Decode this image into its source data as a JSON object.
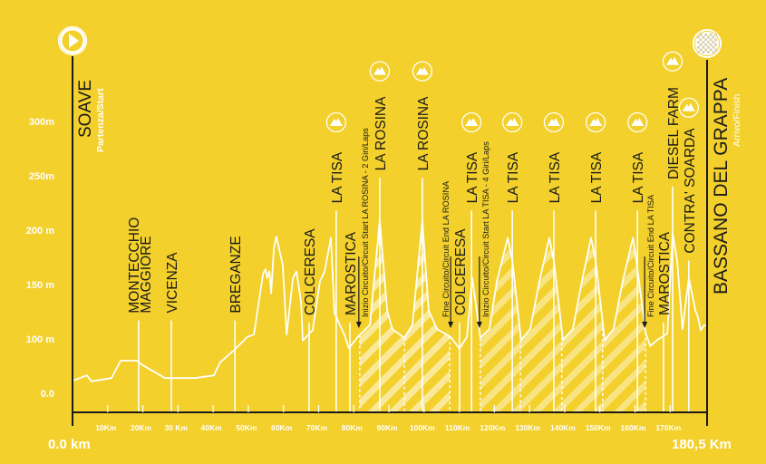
{
  "colors": {
    "background": "#f3d02b",
    "profile": "#ffffff",
    "axis": "#1a1a1a",
    "hatch": "#fbeaa0"
  },
  "start": {
    "name": "SOAVE",
    "sub": "Partenza/Start",
    "km_label": "0.0 km",
    "icon": "play-icon"
  },
  "finish": {
    "name": "BASSANO DEL GRAPPA",
    "sub": "Arrivo/Finish",
    "km_label": "180,5 Km",
    "icon": "checkered-flag-icon"
  },
  "chart_data": {
    "type": "area",
    "xlim": [
      0,
      180.5
    ],
    "x_ticks": [
      {
        "km": 10,
        "label": "10Km"
      },
      {
        "km": 20,
        "label": "20Km"
      },
      {
        "km": 30,
        "label": "30 Km"
      },
      {
        "km": 40,
        "label": "40Km"
      },
      {
        "km": 50,
        "label": "50Km"
      },
      {
        "km": 60,
        "label": "60Km"
      },
      {
        "km": 70,
        "label": "70Km"
      },
      {
        "km": 80,
        "label": "80Km"
      },
      {
        "km": 90,
        "label": "90Km"
      },
      {
        "km": 100,
        "label": "100Km"
      },
      {
        "km": 110,
        "label": "110Km"
      },
      {
        "km": 120,
        "label": "120Km"
      },
      {
        "km": 130,
        "label": "130Km"
      },
      {
        "km": 140,
        "label": "140Km"
      },
      {
        "km": 150,
        "label": "150Km"
      },
      {
        "km": 160,
        "label": "160Km"
      },
      {
        "km": 170,
        "label": "170Km"
      }
    ],
    "y_ticks": [
      {
        "m": 0,
        "label": "0.0"
      },
      {
        "m": 100,
        "label": "100 m"
      },
      {
        "m": 150,
        "label": "150 m"
      },
      {
        "m": 200,
        "label": "200 m"
      },
      {
        "m": 250,
        "label": "250m"
      },
      {
        "m": 300,
        "label": "300m"
      }
    ],
    "profile": [
      [
        0,
        23
      ],
      [
        4.1,
        33
      ],
      [
        5.4,
        22
      ],
      [
        11.1,
        28
      ],
      [
        13.7,
        60
      ],
      [
        18.3,
        60
      ],
      [
        19.9,
        52
      ],
      [
        26.3,
        28
      ],
      [
        34.8,
        28
      ],
      [
        40.2,
        33
      ],
      [
        42.0,
        57
      ],
      [
        46.4,
        82
      ],
      [
        49.8,
        102
      ],
      [
        51.6,
        104
      ],
      [
        54.2,
        160
      ],
      [
        54.9,
        164
      ],
      [
        55.4,
        156
      ],
      [
        56.0,
        162
      ],
      [
        56.5,
        142
      ],
      [
        57.3,
        184
      ],
      [
        58.0,
        194
      ],
      [
        59.8,
        168
      ],
      [
        60.9,
        104
      ],
      [
        62.7,
        156
      ],
      [
        63.7,
        162
      ],
      [
        65.0,
        134
      ],
      [
        65.5,
        97
      ],
      [
        68.3,
        108
      ],
      [
        70.4,
        153
      ],
      [
        71.7,
        162
      ],
      [
        73.5,
        193
      ],
      [
        74.5,
        124
      ],
      [
        77.4,
        103
      ],
      [
        78.6,
        83
      ],
      [
        81.2,
        102
      ],
      [
        84.6,
        113
      ],
      [
        87.4,
        209
      ],
      [
        89.5,
        126
      ],
      [
        91.0,
        109
      ],
      [
        94.4,
        101
      ],
      [
        96.7,
        113
      ],
      [
        99.5,
        209
      ],
      [
        101.3,
        126
      ],
      [
        103.7,
        109
      ],
      [
        107.5,
        102
      ],
      [
        110.1,
        82
      ],
      [
        112.2,
        102
      ],
      [
        113.7,
        156
      ],
      [
        116.0,
        101
      ],
      [
        118.6,
        109
      ],
      [
        120.7,
        153
      ],
      [
        123.8,
        193
      ],
      [
        125.1,
        172
      ],
      [
        127.6,
        98
      ],
      [
        130.2,
        109
      ],
      [
        132.8,
        153
      ],
      [
        135.6,
        193
      ],
      [
        136.9,
        172
      ],
      [
        139.5,
        98
      ],
      [
        142.3,
        109
      ],
      [
        144.9,
        153
      ],
      [
        147.5,
        193
      ],
      [
        148.8,
        172
      ],
      [
        151.4,
        98
      ],
      [
        153.9,
        109
      ],
      [
        156.5,
        153
      ],
      [
        159.4,
        193
      ],
      [
        160.4,
        172
      ],
      [
        163.0,
        106
      ],
      [
        164.3,
        87
      ],
      [
        166.3,
        98
      ],
      [
        169.2,
        105
      ],
      [
        170.7,
        197
      ],
      [
        172.0,
        172
      ],
      [
        173.5,
        109
      ],
      [
        175.3,
        156
      ],
      [
        177.2,
        126
      ],
      [
        177.9,
        120
      ],
      [
        178.7,
        108
      ],
      [
        179.5,
        112
      ],
      [
        180.5,
        113
      ]
    ],
    "circuits": [
      {
        "from": 81.7,
        "to": 107.3,
        "boundaries": [
          81.7,
          94.4,
          107.3
        ],
        "strength": "strong"
      },
      {
        "from": 116.0,
        "to": 163.0,
        "boundaries": [
          116.0,
          127.4,
          139.2,
          150.8,
          163.0
        ],
        "strength": "light"
      }
    ],
    "markers": [
      {
        "km": 18.8,
        "lines": [
          "MONTECCHIO",
          "MAGGIORE"
        ],
        "top_m": 117,
        "climb": false
      },
      {
        "km": 28.1,
        "lines": [
          "VICENZA"
        ],
        "top_m": 117,
        "climb": false
      },
      {
        "km": 46.2,
        "lines": [
          "BREGANZE"
        ],
        "top_m": 117,
        "climb": false
      },
      {
        "km": 67.3,
        "lines": [
          "COLCERESA"
        ],
        "top_m": 115,
        "climb": false
      },
      {
        "km": 75.0,
        "lines": [
          "LA TISA"
        ],
        "top_m": 218,
        "climb": true
      },
      {
        "km": 78.9,
        "lines": [
          "MAROSTICA"
        ],
        "top_m": 115,
        "climb": false
      },
      {
        "km": 87.4,
        "lines": [
          "LA ROSINA"
        ],
        "top_m": 248,
        "climb": true
      },
      {
        "km": 99.5,
        "lines": [
          "LA ROSINA"
        ],
        "top_m": 248,
        "climb": true
      },
      {
        "km": 110.1,
        "lines": [
          "COLCERESA"
        ],
        "top_m": 115,
        "climb": false
      },
      {
        "km": 113.5,
        "lines": [
          "LA TISA"
        ],
        "top_m": 218,
        "climb": true
      },
      {
        "km": 125.1,
        "lines": [
          "LA TISA"
        ],
        "top_m": 218,
        "climb": true
      },
      {
        "km": 136.9,
        "lines": [
          "LA TISA"
        ],
        "top_m": 218,
        "climb": true
      },
      {
        "km": 148.8,
        "lines": [
          "LA TISA"
        ],
        "top_m": 218,
        "climb": true
      },
      {
        "km": 160.7,
        "lines": [
          "LA TISA"
        ],
        "top_m": 218,
        "climb": true
      },
      {
        "km": 168.1,
        "lines": [
          "MAROSTICA"
        ],
        "top_m": 115,
        "climb": false
      },
      {
        "km": 170.7,
        "lines": [
          "DIESEL FARM"
        ],
        "top_m": 240,
        "climb": true
      },
      {
        "km": 175.3,
        "lines": [
          "CONTRA' SOARDA"
        ],
        "top_m": 172,
        "climb": true
      }
    ],
    "notes": [
      {
        "km": 81.7,
        "text": "Inizio Circuito/Circuit Start LA ROSINA - 2 Giri/Laps",
        "side": "right"
      },
      {
        "km": 107.3,
        "text": "Fine Circuito/Circuit End LA ROSINA",
        "side": "left"
      },
      {
        "km": 116.0,
        "text": "Inizio Circuito/Circuit Start LA TISA - 4 Giri/Laps",
        "side": "right"
      },
      {
        "km": 163.0,
        "text": "Fine Circuito/Circuit End LA TISA",
        "side": "right"
      }
    ]
  }
}
